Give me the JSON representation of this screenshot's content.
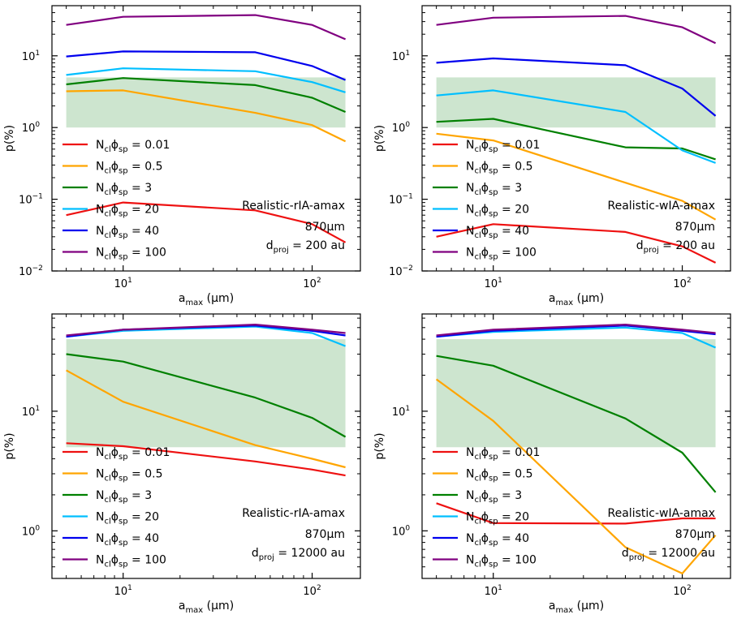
{
  "chart_data": [
    {
      "type": "line",
      "xscale": "log",
      "yscale": "log",
      "xlim": [
        4.2,
        180
      ],
      "ylim": [
        0.01,
        50
      ],
      "xlabel": {
        "main": "a",
        "sub": "max",
        "unit": " (μm)"
      },
      "ylabel": "p(%)",
      "xticks": [
        {
          "value": 10,
          "label": "10",
          "exp": "1"
        },
        {
          "value": 100,
          "label": "10",
          "exp": "2"
        }
      ],
      "yticks": [
        {
          "value": 0.01,
          "label": "10",
          "exp": "−2"
        },
        {
          "value": 0.1,
          "label": "10",
          "exp": "−1"
        },
        {
          "value": 1,
          "label": "10",
          "exp": "0"
        },
        {
          "value": 10,
          "label": "10",
          "exp": "1"
        }
      ],
      "band": {
        "y0": 1,
        "y1": 5,
        "x0": 5,
        "x1": 150,
        "color": "#cde5cf"
      },
      "x": [
        5,
        10,
        50,
        100,
        150
      ],
      "series": [
        {
          "name": "0.01",
          "color": "#ee1111",
          "values": [
            0.06,
            0.09,
            0.07,
            0.045,
            0.025
          ]
        },
        {
          "name": "0.5",
          "color": "#ffa500",
          "values": [
            3.2,
            3.3,
            1.6,
            1.08,
            0.64
          ]
        },
        {
          "name": "3",
          "color": "#008000",
          "values": [
            4.0,
            4.9,
            3.9,
            2.6,
            1.65
          ]
        },
        {
          "name": "20",
          "color": "#00bfff",
          "values": [
            5.4,
            6.7,
            6.1,
            4.3,
            3.1
          ]
        },
        {
          "name": "40",
          "color": "#0000ee",
          "values": [
            9.8,
            11.5,
            11.2,
            7.2,
            4.6
          ]
        },
        {
          "name": "100",
          "color": "#800080",
          "values": [
            27,
            35,
            37,
            27,
            17
          ]
        }
      ],
      "legend_label_prefix": "N",
      "legend_label_sub1": "cl",
      "legend_label_phi": "ϕ",
      "legend_label_sub2": "sp",
      "legend_label_eq": " = ",
      "legend_position": "lower-left",
      "annotation": {
        "model": "Realistic-rIA-amax",
        "wavelength": "870μm",
        "dproj_main": "d",
        "dproj_sub": "proj",
        "dproj_value": " = 200 au"
      }
    },
    {
      "type": "line",
      "xscale": "log",
      "yscale": "log",
      "xlim": [
        4.2,
        180
      ],
      "ylim": [
        0.01,
        50
      ],
      "xlabel": {
        "main": "a",
        "sub": "max",
        "unit": " (μm)"
      },
      "ylabel": "p(%)",
      "xticks": [
        {
          "value": 10,
          "label": "10",
          "exp": "1"
        },
        {
          "value": 100,
          "label": "10",
          "exp": "2"
        }
      ],
      "yticks": [
        {
          "value": 0.01,
          "label": "10",
          "exp": "−2"
        },
        {
          "value": 0.1,
          "label": "10",
          "exp": "−1"
        },
        {
          "value": 1,
          "label": "10",
          "exp": "0"
        },
        {
          "value": 10,
          "label": "10",
          "exp": "1"
        }
      ],
      "band": {
        "y0": 1,
        "y1": 5,
        "x0": 5,
        "x1": 150,
        "color": "#cde5cf"
      },
      "x": [
        5,
        10,
        50,
        100,
        150
      ],
      "series": [
        {
          "name": "0.01",
          "color": "#ee1111",
          "values": [
            0.03,
            0.045,
            0.035,
            0.022,
            0.013
          ]
        },
        {
          "name": "0.5",
          "color": "#ffa500",
          "values": [
            0.82,
            0.66,
            0.17,
            0.095,
            0.052
          ]
        },
        {
          "name": "3",
          "color": "#008000",
          "values": [
            1.2,
            1.32,
            0.53,
            0.51,
            0.36
          ]
        },
        {
          "name": "20",
          "color": "#00bfff",
          "values": [
            2.8,
            3.3,
            1.65,
            0.48,
            0.32
          ]
        },
        {
          "name": "40",
          "color": "#0000ee",
          "values": [
            8.0,
            9.2,
            7.4,
            3.5,
            1.45
          ]
        },
        {
          "name": "100",
          "color": "#800080",
          "values": [
            27,
            34,
            36,
            25,
            15
          ]
        }
      ],
      "legend_label_prefix": "N",
      "legend_label_sub1": "cl",
      "legend_label_phi": "ϕ",
      "legend_label_sub2": "sp",
      "legend_label_eq": " = ",
      "legend_position": "lower-left",
      "annotation": {
        "model": "Realistic-wIA-amax",
        "wavelength": "870μm",
        "dproj_main": "d",
        "dproj_sub": "proj",
        "dproj_value": " = 200 au"
      }
    },
    {
      "type": "line",
      "xscale": "log",
      "yscale": "log",
      "xlim": [
        4.2,
        180
      ],
      "ylim": [
        0.4,
        65
      ],
      "xlabel": {
        "main": "a",
        "sub": "max",
        "unit": " (μm)"
      },
      "ylabel": "p(%)",
      "xticks": [
        {
          "value": 10,
          "label": "10",
          "exp": "1"
        },
        {
          "value": 100,
          "label": "10",
          "exp": "2"
        }
      ],
      "yticks": [
        {
          "value": 1,
          "label": "10",
          "exp": "0"
        },
        {
          "value": 10,
          "label": "10",
          "exp": "1"
        }
      ],
      "band": {
        "y0": 5,
        "y1": 40,
        "x0": 5,
        "x1": 150,
        "color": "#cde5cf"
      },
      "x": [
        5,
        10,
        50,
        100,
        150
      ],
      "series": [
        {
          "name": "0.01",
          "color": "#ee1111",
          "values": [
            5.4,
            5.1,
            3.8,
            3.25,
            2.9
          ]
        },
        {
          "name": "0.5",
          "color": "#ffa500",
          "values": [
            22,
            12,
            5.2,
            4.0,
            3.4
          ]
        },
        {
          "name": "3",
          "color": "#008000",
          "values": [
            30,
            26,
            13,
            8.8,
            6.1
          ]
        },
        {
          "name": "20",
          "color": "#00bfff",
          "values": [
            42,
            47,
            51,
            45,
            35
          ]
        },
        {
          "name": "40",
          "color": "#0000ee",
          "values": [
            42,
            48,
            52,
            47,
            43
          ]
        },
        {
          "name": "100",
          "color": "#800080",
          "values": [
            43,
            48,
            53,
            48,
            45
          ]
        }
      ],
      "legend_label_prefix": "N",
      "legend_label_sub1": "cl",
      "legend_label_phi": "ϕ",
      "legend_label_sub2": "sp",
      "legend_label_eq": " = ",
      "legend_position": "lower-left",
      "annotation": {
        "model": "Realistic-rIA-amax",
        "wavelength": "870μm",
        "dproj_main": "d",
        "dproj_sub": "proj",
        "dproj_value": " = 12000 au"
      }
    },
    {
      "type": "line",
      "xscale": "log",
      "yscale": "log",
      "xlim": [
        4.2,
        180
      ],
      "ylim": [
        0.4,
        65
      ],
      "xlabel": {
        "main": "a",
        "sub": "max",
        "unit": " (μm)"
      },
      "ylabel": "p(%)",
      "xticks": [
        {
          "value": 10,
          "label": "10",
          "exp": "1"
        },
        {
          "value": 100,
          "label": "10",
          "exp": "2"
        }
      ],
      "yticks": [
        {
          "value": 1,
          "label": "10",
          "exp": "0"
        },
        {
          "value": 10,
          "label": "10",
          "exp": "1"
        }
      ],
      "band": {
        "y0": 5,
        "y1": 40,
        "x0": 5,
        "x1": 150,
        "color": "#cde5cf"
      },
      "x": [
        5,
        10,
        50,
        100,
        150
      ],
      "series": [
        {
          "name": "0.01",
          "color": "#ee1111",
          "values": [
            1.7,
            1.16,
            1.15,
            1.27,
            1.27
          ]
        },
        {
          "name": "0.5",
          "color": "#ffa500",
          "values": [
            18.5,
            8.3,
            0.73,
            0.44,
            0.92
          ]
        },
        {
          "name": "3",
          "color": "#008000",
          "values": [
            29,
            24,
            8.7,
            4.5,
            2.1
          ]
        },
        {
          "name": "20",
          "color": "#00bfff",
          "values": [
            42,
            46,
            50,
            45,
            34
          ]
        },
        {
          "name": "40",
          "color": "#0000ee",
          "values": [
            42,
            47,
            52,
            47,
            44
          ]
        },
        {
          "name": "100",
          "color": "#800080",
          "values": [
            43,
            48,
            53,
            48,
            45
          ]
        }
      ],
      "legend_label_prefix": "N",
      "legend_label_sub1": "cl",
      "legend_label_phi": "ϕ",
      "legend_label_sub2": "sp",
      "legend_label_eq": " = ",
      "legend_position": "lower-left",
      "annotation": {
        "model": "Realistic-wIA-amax",
        "wavelength": "870μm",
        "dproj_main": "d",
        "dproj_sub": "proj",
        "dproj_value": " = 12000 au"
      }
    }
  ]
}
